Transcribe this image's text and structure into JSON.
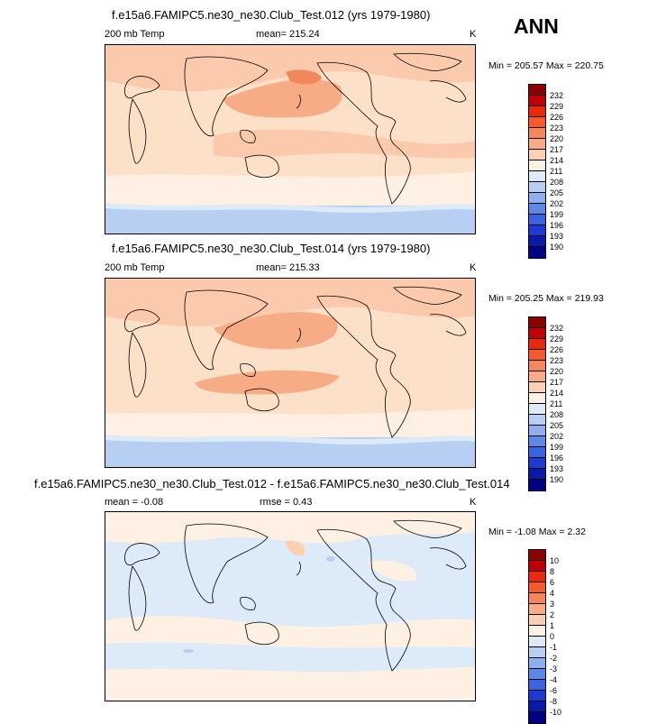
{
  "season": "ANN",
  "panels": [
    {
      "title": "f.e15a6.FAMIPC5.ne30_ne30.Club_Test.012 (yrs 1979-1980)",
      "left_label": "200 mb Temp",
      "center_label": "mean= 215.24",
      "right_label": "K",
      "minmax": "Min = 205.57 Max = 220.75",
      "type": "abs"
    },
    {
      "title": "f.e15a6.FAMIPC5.ne30_ne30.Club_Test.014 (yrs 1979-1980)",
      "left_label": "200 mb Temp",
      "center_label": "mean= 215.33",
      "right_label": "K",
      "minmax": "Min = 205.25 Max = 219.93",
      "type": "abs"
    },
    {
      "title": "f.e15a6.FAMIPC5.ne30_ne30.Club_Test.012 - f.e15a6.FAMIPC5.ne30_ne30.Club_Test.014",
      "left_label": "mean =  -0.08",
      "center_label": "rmse =   0.43",
      "right_label": "K",
      "minmax": "Min =  -1.08 Max =   2.32",
      "type": "diff"
    }
  ],
  "colorbar_abs": {
    "labels": [
      "232",
      "229",
      "226",
      "223",
      "220",
      "217",
      "214",
      "211",
      "208",
      "205",
      "202",
      "199",
      "196",
      "193",
      "190"
    ],
    "colors": [
      "#8b0000",
      "#c00000",
      "#e8290c",
      "#f55a2a",
      "#f6875a",
      "#f8ac86",
      "#fdd0b4",
      "#fff0e4",
      "#ddeaf8",
      "#b7cff3",
      "#8fb0ee",
      "#5d88e8",
      "#3a63e0",
      "#1d3bd0",
      "#0a1aa8",
      "#000080"
    ]
  },
  "colorbar_diff": {
    "labels": [
      "10",
      "8",
      "6",
      "4",
      "3",
      "2",
      "1",
      "0",
      "-1",
      "-2",
      "-3",
      "-4",
      "-6",
      "-8",
      "-10"
    ],
    "colors": [
      "#8b0000",
      "#c00000",
      "#e8290c",
      "#f55a2a",
      "#f6875a",
      "#f8ac86",
      "#fdd0b4",
      "#fff0e4",
      "#ddeaf8",
      "#b7cff3",
      "#8fb0ee",
      "#5d88e8",
      "#3a63e0",
      "#1d3bd0",
      "#0a1aa8",
      "#000080"
    ]
  },
  "chart_data": [
    {
      "type": "heatmap",
      "title": "f.e15a6.FAMIPC5.ne30_ne30.Club_Test.012 (yrs 1979-1980)",
      "variable": "200 mb Temp",
      "units": "K",
      "mean": 215.24,
      "min": 205.57,
      "max": 220.75,
      "levels": [
        190,
        193,
        196,
        199,
        202,
        205,
        208,
        211,
        214,
        217,
        220,
        223,
        226,
        229,
        232
      ]
    },
    {
      "type": "heatmap",
      "title": "f.e15a6.FAMIPC5.ne30_ne30.Club_Test.014 (yrs 1979-1980)",
      "variable": "200 mb Temp",
      "units": "K",
      "mean": 215.33,
      "min": 205.25,
      "max": 219.93,
      "levels": [
        190,
        193,
        196,
        199,
        202,
        205,
        208,
        211,
        214,
        217,
        220,
        223,
        226,
        229,
        232
      ]
    },
    {
      "type": "heatmap",
      "title": "f.e15a6.FAMIPC5.ne30_ne30.Club_Test.012 - f.e15a6.FAMIPC5.ne30_ne30.Club_Test.014",
      "units": "K",
      "mean": -0.08,
      "rmse": 0.43,
      "min": -1.08,
      "max": 2.32,
      "levels": [
        -10,
        -8,
        -6,
        -4,
        -3,
        -2,
        -1,
        0,
        1,
        2,
        3,
        4,
        6,
        8,
        10
      ]
    }
  ]
}
